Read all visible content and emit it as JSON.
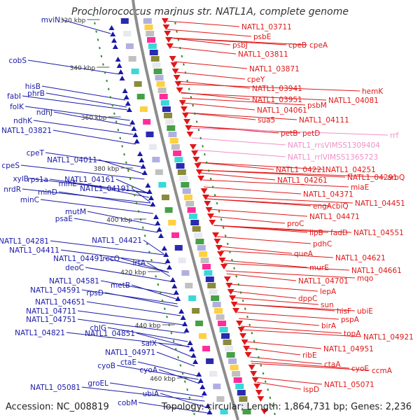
{
  "title": "Prochlorococcus marinus str. NATL1A, complete genome",
  "footer": {
    "accession": "Accession: NC_008819",
    "summary": "Topology: circular; Length: 1,864,731 bp; Genes: 2,236"
  },
  "colors": {
    "left_genes": "#1a1aa8",
    "right_genes": "#e01818",
    "rna_genes": "#f090c8",
    "backbone": "#8c8c8c",
    "dots": "#2e8b2e"
  },
  "ticks": [
    {
      "label": "320 kbp"
    },
    {
      "label": "340 kbp"
    },
    {
      "label": "360 kbp"
    },
    {
      "label": "380 kbp"
    },
    {
      "label": "400 kbp"
    },
    {
      "label": "420 kbp"
    },
    {
      "label": "440 kbp"
    },
    {
      "label": "460 kbp"
    }
  ],
  "left_labels": [
    "mviN",
    "cobS",
    "hisB",
    "fabI",
    "phrB",
    "folK",
    "ndhJ",
    "ndhK",
    "NATL1_03821",
    "cpeT",
    "NATL1_04011",
    "cpeS",
    "xylB",
    "rps1a",
    "nrdR",
    "minE",
    "NATL1_04161",
    "minD",
    "NATL1_04191",
    "minC",
    "mutM",
    "psaE",
    "NATL1_04281",
    "NATL1_04421",
    "NATL1_04411",
    "NATL1_04491",
    "recO",
    "lrtA",
    "deoC",
    "NATL1_04581",
    "metB",
    "NATL1_04591",
    "rpsD",
    "NATL1_04651",
    "NATL1_04711",
    "NATL1_04751",
    "chlG",
    "NATL1_04821",
    "NATL1_04851",
    "salX",
    "NATL1_04971",
    "cyoB",
    "ctaE",
    "cyoA",
    "NATL1_05081",
    "groEL",
    "ubiA",
    "cobM"
  ],
  "right_labels": [
    "NATL1_03711",
    "psbE",
    "psbJ",
    "cpeB",
    "cpeA",
    "NATL1_03811",
    "NATL1_03871",
    "cpeY",
    "NATL1_03941",
    "hemK",
    "NATL1_03951",
    "psbM",
    "NATL1_04081",
    "NATL1_04061",
    "sua5",
    "NATL1_04111",
    "petB",
    "petD",
    "rrf",
    "NATL1_rrsVIMSS1309404",
    "NATL1_rrlVIMSS1365723",
    "NATL1_04221",
    "NATL1_04251",
    "NATL1_04261",
    "NATL1_04291",
    "aroQ",
    "miaE",
    "NATL1_04371",
    "engA",
    "cbiQ",
    "NATL1_04451",
    "NATL1_04471",
    "proC",
    "lipB",
    "fadD",
    "NATL1_04551",
    "pdhC",
    "queA",
    "NATL1_04621",
    "murE",
    "NATL1_04661",
    "NATL1_04701",
    "mqo",
    "lepA",
    "dppC",
    "sun",
    "hisF",
    "ubiE",
    "pspA",
    "birA",
    "topA",
    "NATL1_04921",
    "NATL1_04951",
    "ribE",
    "ctaA",
    "cyoE",
    "ccmA",
    "NATL1_05071",
    "ispD"
  ]
}
